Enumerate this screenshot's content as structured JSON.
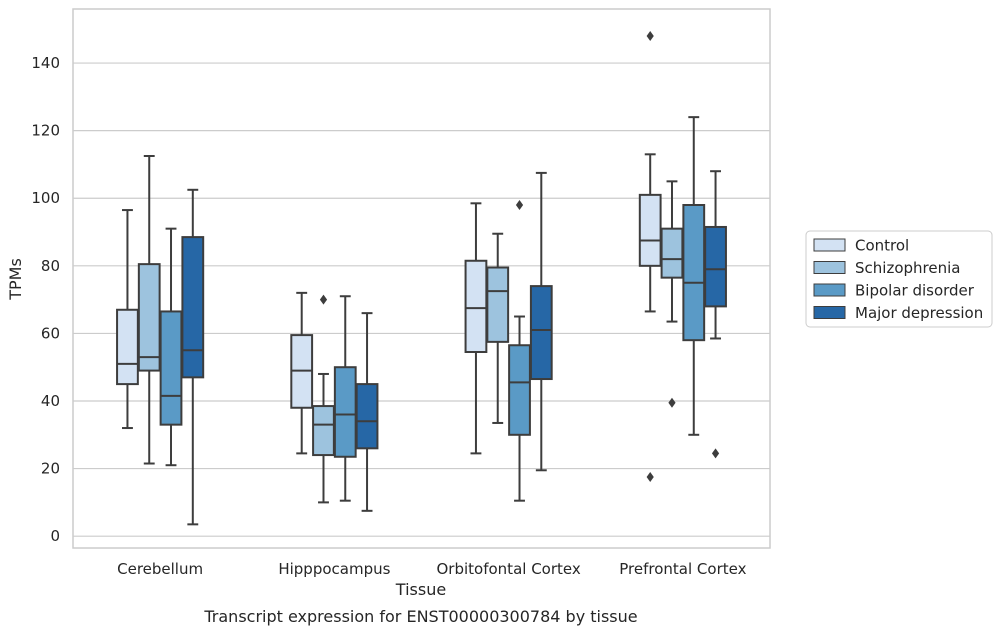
{
  "caption": "Transcript expression for ENST00000300784 by tissue",
  "chart_data": {
    "type": "box",
    "xlabel": "Tissue",
    "ylabel": "TPMs",
    "ylim": [
      -3.5,
      156
    ],
    "yticks": [
      0,
      20,
      40,
      60,
      80,
      100,
      120,
      140
    ],
    "grid": "horizontal",
    "legend_position": "right, outside plot area",
    "categories": [
      "Cerebellum",
      "Hipppocampus",
      "Orbitofontal Cortex",
      "Prefrontal Cortex"
    ],
    "series": [
      {
        "name": "Control",
        "color": "#d3e2f3",
        "boxes": [
          {
            "whislo": 32,
            "q1": 45,
            "med": 51,
            "q3": 67,
            "whishi": 96.5,
            "fliers": []
          },
          {
            "whislo": 24.5,
            "q1": 38,
            "med": 49,
            "q3": 59.5,
            "whishi": 72,
            "fliers": []
          },
          {
            "whislo": 24.5,
            "q1": 54.5,
            "med": 67.5,
            "q3": 81.5,
            "whishi": 98.5,
            "fliers": []
          },
          {
            "whislo": 66.5,
            "q1": 80,
            "med": 87.5,
            "q3": 101,
            "whishi": 113,
            "fliers": [
              148,
              17.5
            ]
          }
        ]
      },
      {
        "name": "Schizophrenia",
        "color": "#9dc3de",
        "boxes": [
          {
            "whislo": 21.5,
            "q1": 49,
            "med": 53,
            "q3": 80.5,
            "whishi": 112.5,
            "fliers": []
          },
          {
            "whislo": 10,
            "q1": 24,
            "med": 33,
            "q3": 38.5,
            "whishi": 48,
            "fliers": [
              70
            ]
          },
          {
            "whislo": 33.5,
            "q1": 57.5,
            "med": 72.5,
            "q3": 79.5,
            "whishi": 89.5,
            "fliers": []
          },
          {
            "whislo": 63.5,
            "q1": 76.5,
            "med": 82,
            "q3": 91,
            "whishi": 105,
            "fliers": [
              39.5
            ]
          }
        ]
      },
      {
        "name": "Bipolar disorder",
        "color": "#5a9ac6",
        "boxes": [
          {
            "whislo": 21,
            "q1": 33,
            "med": 41.5,
            "q3": 66.5,
            "whishi": 91,
            "fliers": []
          },
          {
            "whislo": 10.5,
            "q1": 23.5,
            "med": 36,
            "q3": 50,
            "whishi": 71,
            "fliers": []
          },
          {
            "whislo": 10.5,
            "q1": 30,
            "med": 45.5,
            "q3": 56.5,
            "whishi": 65,
            "fliers": [
              98
            ]
          },
          {
            "whislo": 30,
            "q1": 58,
            "med": 75,
            "q3": 98,
            "whishi": 124,
            "fliers": []
          }
        ]
      },
      {
        "name": "Major depression",
        "color": "#2667a6",
        "boxes": [
          {
            "whislo": 3.5,
            "q1": 47,
            "med": 55,
            "q3": 88.5,
            "whishi": 102.5,
            "fliers": []
          },
          {
            "whislo": 7.5,
            "q1": 26,
            "med": 34,
            "q3": 45,
            "whishi": 66,
            "fliers": []
          },
          {
            "whislo": 19.5,
            "q1": 46.5,
            "med": 61,
            "q3": 74,
            "whishi": 107.5,
            "fliers": []
          },
          {
            "whislo": 58.5,
            "q1": 68,
            "med": 79,
            "q3": 91.5,
            "whishi": 108,
            "fliers": [
              24.5
            ]
          }
        ]
      }
    ]
  }
}
